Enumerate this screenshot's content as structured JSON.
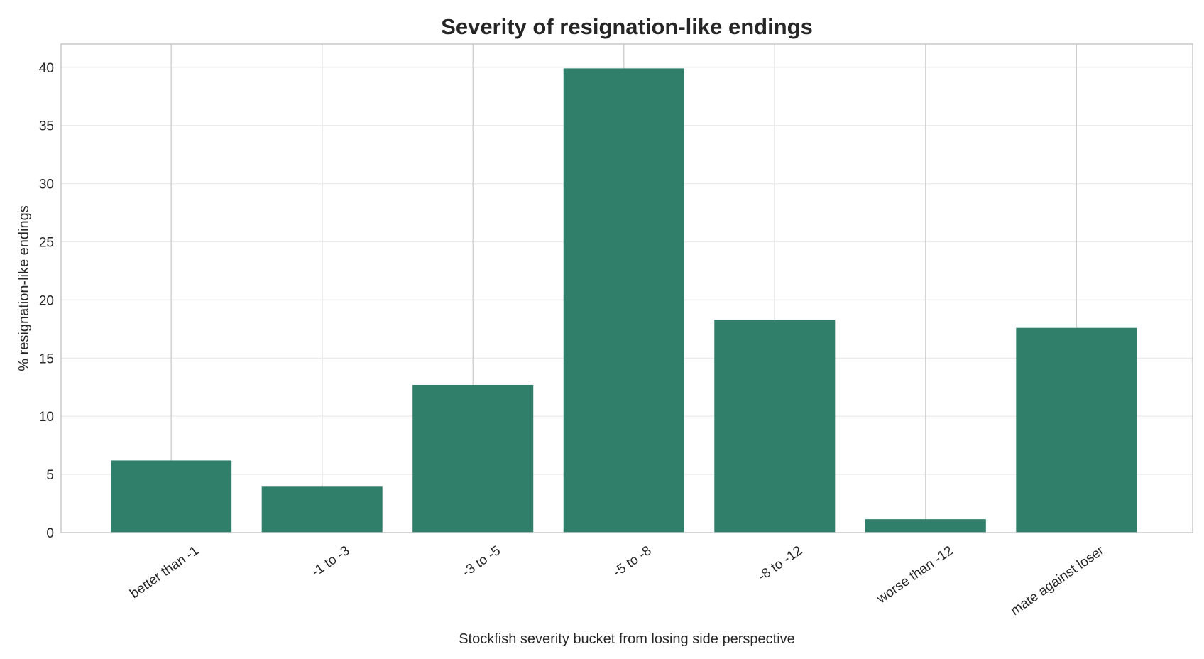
{
  "chart_data": {
    "type": "bar",
    "title": "Severity of resignation-like endings",
    "xlabel": "Stockfish severity bucket from losing side perspective",
    "ylabel": "% resignation-like endings",
    "categories": [
      "better than -1",
      "-1 to -3",
      "-3 to -5",
      "-5 to -8",
      "-8 to -12",
      "worse than -12",
      "mate against loser"
    ],
    "values": [
      6.2,
      3.95,
      12.7,
      39.9,
      18.3,
      1.15,
      17.6
    ],
    "ylim": [
      0,
      42
    ],
    "yticks": [
      0,
      5,
      10,
      15,
      20,
      25,
      30,
      35,
      40
    ],
    "grid": true,
    "bar_color": "#2f7f6a"
  }
}
